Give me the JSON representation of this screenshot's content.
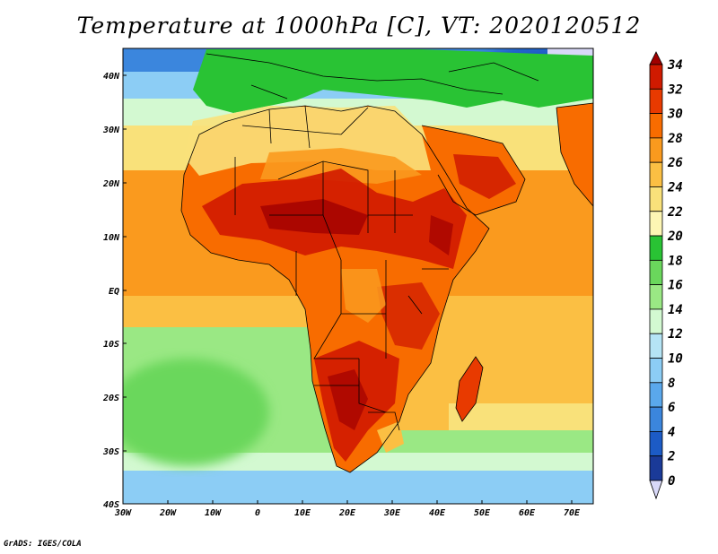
{
  "title": "Temperature at 1000hPa [C], VT: 2020120512",
  "credit": "GrADS: IGES/COLA",
  "map": {
    "lon_labels": [
      "30W",
      "20W",
      "10W",
      "0",
      "10E",
      "20E",
      "30E",
      "40E",
      "50E",
      "60E",
      "70E"
    ],
    "lat_labels": [
      "40N",
      "30N",
      "20N",
      "10N",
      "EQ",
      "10S",
      "20S",
      "30S",
      "40S"
    ],
    "lon_range": [
      -30,
      75
    ],
    "lat_range": [
      -40,
      44
    ]
  },
  "colorbar": {
    "levels": [
      "34",
      "32",
      "30",
      "28",
      "26",
      "24",
      "22",
      "20",
      "18",
      "16",
      "14",
      "12",
      "10",
      "8",
      "6",
      "4",
      "2",
      "0"
    ],
    "colors": [
      "#a00000",
      "#d01a00",
      "#e83a00",
      "#f86c00",
      "#fa9a1e",
      "#fbbf43",
      "#f9e17a",
      "#fdf6b4",
      "#29c334",
      "#6ad75c",
      "#9ae884",
      "#d3f9d1",
      "#b5e4f5",
      "#8ccdf5",
      "#5aa8ec",
      "#3b86dd",
      "#1c5bc6",
      "#1a3a98",
      "#0a1466"
    ]
  }
}
